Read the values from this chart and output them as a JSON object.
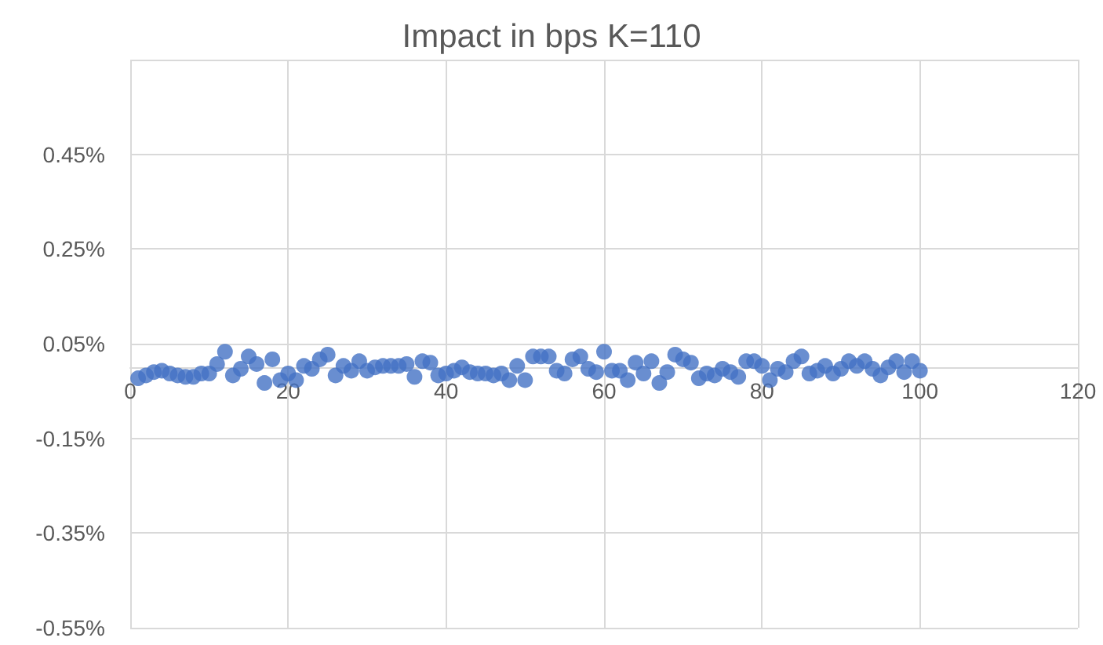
{
  "chart_data": {
    "type": "scatter",
    "title": "Impact in bps K=110",
    "x": [
      1,
      2,
      3,
      4,
      5,
      6,
      7,
      8,
      9,
      10,
      11,
      12,
      13,
      14,
      15,
      16,
      17,
      18,
      19,
      20,
      21,
      22,
      23,
      24,
      25,
      26,
      27,
      28,
      29,
      30,
      31,
      32,
      33,
      34,
      35,
      36,
      37,
      38,
      39,
      40,
      41,
      42,
      43,
      44,
      45,
      46,
      47,
      48,
      49,
      50,
      51,
      52,
      53,
      54,
      55,
      56,
      57,
      58,
      59,
      60,
      61,
      62,
      63,
      64,
      65,
      66,
      67,
      68,
      69,
      70,
      71,
      72,
      73,
      74,
      75,
      76,
      77,
      78,
      79,
      80,
      81,
      82,
      83,
      84,
      85,
      86,
      87,
      88,
      89,
      90,
      91,
      92,
      93,
      94,
      95,
      96,
      97,
      98,
      99,
      100
    ],
    "series": [
      {
        "color": "#4472c4",
        "values": [
          -0.023,
          -0.017,
          -0.01,
          -0.007,
          -0.013,
          -0.017,
          -0.02,
          -0.02,
          -0.013,
          -0.013,
          0.007,
          0.033,
          -0.017,
          -0.003,
          0.023,
          0.007,
          -0.033,
          0.017,
          -0.027,
          -0.013,
          -0.027,
          0.003,
          -0.003,
          0.017,
          0.027,
          -0.017,
          0.003,
          -0.007,
          0.013,
          -0.007,
          0,
          0.003,
          0.003,
          0.003,
          0.007,
          -0.02,
          0.013,
          0.01,
          -0.017,
          -0.013,
          -0.007,
          0,
          -0.01,
          -0.013,
          -0.013,
          -0.017,
          -0.013,
          -0.027,
          0.003,
          -0.027,
          0.023,
          0.023,
          0.023,
          -0.007,
          -0.013,
          0.017,
          0.023,
          -0.003,
          -0.01,
          0.033,
          -0.007,
          -0.007,
          -0.027,
          0.01,
          -0.013,
          0.013,
          -0.033,
          -0.01,
          0.027,
          0.017,
          0.01,
          -0.023,
          -0.013,
          -0.017,
          -0.003,
          -0.01,
          -0.02,
          0.013,
          0.013,
          0.003,
          -0.027,
          -0.003,
          -0.01,
          0.013,
          0.023,
          -0.013,
          -0.007,
          0.003,
          -0.013,
          -0.003,
          0.013,
          0.003,
          0.013,
          -0.003,
          -0.017,
          0,
          0.013,
          -0.01,
          0.013,
          -0.007
        ]
      }
    ],
    "xlim": [
      0,
      120
    ],
    "xticks": [
      0,
      20,
      40,
      60,
      80,
      100,
      120
    ],
    "ylim": [
      -0.55,
      0.65
    ],
    "yticks": [
      {
        "value": -0.55,
        "label": "-0.55%"
      },
      {
        "value": -0.35,
        "label": "-0.35%"
      },
      {
        "value": -0.15,
        "label": "-0.15%"
      },
      {
        "value": 0.05,
        "label": "0.05%"
      },
      {
        "value": 0.25,
        "label": "0.25%"
      },
      {
        "value": 0.45,
        "label": "0.45%"
      },
      {
        "value": 0.65,
        "label": null
      }
    ],
    "grid": true,
    "marker": "circle"
  }
}
